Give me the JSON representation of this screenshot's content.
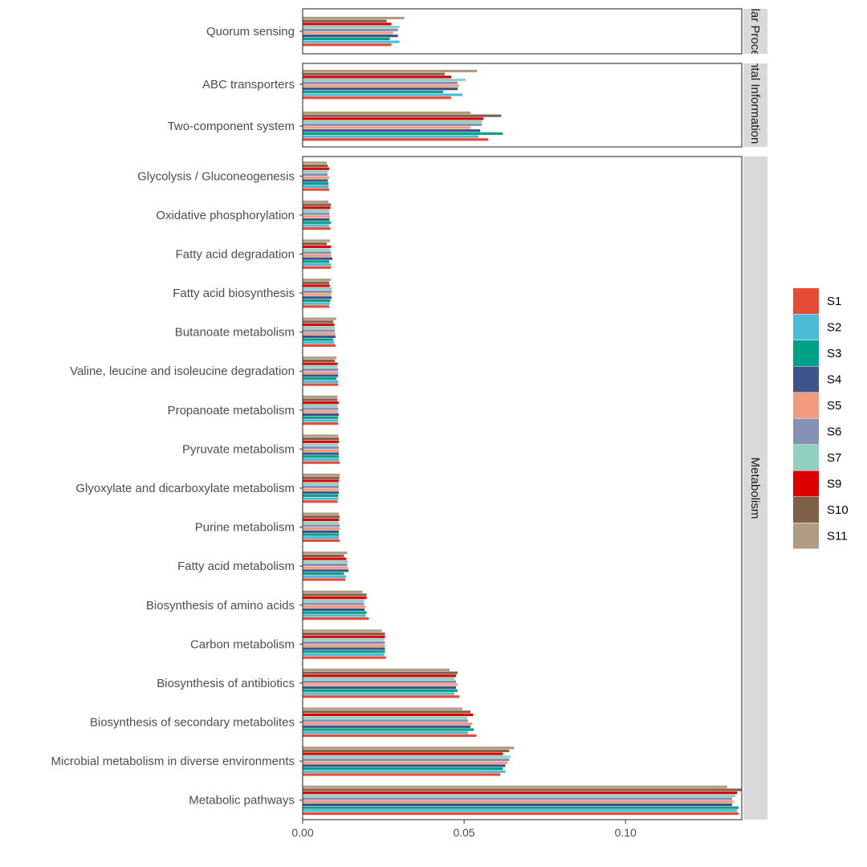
{
  "chart_data": {
    "type": "bar",
    "orientation": "horizontal",
    "xlim": [
      0,
      0.136
    ],
    "x_ticks": [
      0.0,
      0.05,
      0.1
    ],
    "x_tick_labels": [
      "0.00",
      "0.05",
      "0.10"
    ],
    "series": [
      {
        "name": "S1",
        "color": "#E64B35"
      },
      {
        "name": "S2",
        "color": "#4DBBD5"
      },
      {
        "name": "S3",
        "color": "#00A087"
      },
      {
        "name": "S4",
        "color": "#3C5488"
      },
      {
        "name": "S5",
        "color": "#F39B7F"
      },
      {
        "name": "S6",
        "color": "#8491B4"
      },
      {
        "name": "S7",
        "color": "#91D1C2"
      },
      {
        "name": "S9",
        "color": "#DC0000"
      },
      {
        "name": "S10",
        "color": "#7E6148"
      },
      {
        "name": "S11",
        "color": "#B09C85"
      }
    ],
    "facets": [
      {
        "strip_label": "Cellular Processes",
        "categories": [
          {
            "name": "Quorum sensing",
            "values": [
              0.0275,
              0.03,
              0.027,
              0.0295,
              0.028,
              0.0295,
              0.03,
              0.0275,
              0.026,
              0.0315
            ]
          }
        ]
      },
      {
        "strip_label": "Environmental Information Processing",
        "categories": [
          {
            "name": "ABC transporters",
            "values": [
              0.046,
              0.0495,
              0.0435,
              0.048,
              0.0485,
              0.048,
              0.0505,
              0.046,
              0.044,
              0.054
            ]
          },
          {
            "name": "Two-component system",
            "values": [
              0.0575,
              0.0545,
              0.062,
              0.055,
              0.052,
              0.0555,
              0.0555,
              0.056,
              0.0615,
              0.052
            ]
          }
        ]
      },
      {
        "strip_label": "Metabolism",
        "categories": [
          {
            "name": "Glycolysis / Gluconeogenesis",
            "values": [
              0.0082,
              0.008,
              0.008,
              0.0078,
              0.0082,
              0.0077,
              0.0077,
              0.0082,
              0.0078,
              0.0075
            ]
          },
          {
            "name": "Oxidative phosphorylation",
            "values": [
              0.0086,
              0.0082,
              0.0088,
              0.0083,
              0.0085,
              0.0083,
              0.0082,
              0.0086,
              0.0088,
              0.008
            ]
          },
          {
            "name": "Fatty acid degradation",
            "values": [
              0.0088,
              0.0087,
              0.0082,
              0.0092,
              0.0088,
              0.0088,
              0.0086,
              0.0088,
              0.0075,
              0.0085
            ]
          },
          {
            "name": "Fatty acid biosynthesis",
            "values": [
              0.0082,
              0.0084,
              0.0086,
              0.009,
              0.0088,
              0.009,
              0.0091,
              0.0084,
              0.0082,
              0.0088
            ]
          },
          {
            "name": "Butanoate metabolism",
            "values": [
              0.0102,
              0.0098,
              0.0095,
              0.0102,
              0.01,
              0.01,
              0.01,
              0.0098,
              0.0095,
              0.0104
            ]
          },
          {
            "name": "Valine, leucine and isoleucine degradation",
            "values": [
              0.011,
              0.011,
              0.0105,
              0.011,
              0.011,
              0.011,
              0.0108,
              0.0108,
              0.01,
              0.0105
            ]
          },
          {
            "name": "Propanoate metabolism",
            "values": [
              0.011,
              0.011,
              0.011,
              0.0112,
              0.011,
              0.011,
              0.0108,
              0.0112,
              0.0108,
              0.0108
            ]
          },
          {
            "name": "Pyruvate metabolism",
            "values": [
              0.0115,
              0.0112,
              0.0112,
              0.0112,
              0.0112,
              0.0112,
              0.011,
              0.0112,
              0.0112,
              0.011
            ]
          },
          {
            "name": "Glyoxylate and dicarboxylate metabolism",
            "values": [
              0.0108,
              0.011,
              0.011,
              0.0112,
              0.0112,
              0.0112,
              0.0112,
              0.0112,
              0.0114,
              0.0115
            ]
          },
          {
            "name": "Purine metabolism",
            "values": [
              0.0115,
              0.0112,
              0.0112,
              0.0112,
              0.0115,
              0.0115,
              0.0112,
              0.0112,
              0.0115,
              0.0112
            ]
          },
          {
            "name": "Fatty acid metabolism",
            "values": [
              0.0132,
              0.0135,
              0.0128,
              0.0142,
              0.014,
              0.0138,
              0.014,
              0.0135,
              0.0128,
              0.0138
            ]
          },
          {
            "name": "Biosynthesis of amino acids",
            "values": [
              0.0205,
              0.0195,
              0.0198,
              0.0192,
              0.0195,
              0.019,
              0.019,
              0.0198,
              0.0198,
              0.0185
            ]
          },
          {
            "name": "Carbon metabolism",
            "values": [
              0.0258,
              0.0252,
              0.0255,
              0.0255,
              0.0255,
              0.0255,
              0.0252,
              0.0255,
              0.0255,
              0.0245
            ]
          },
          {
            "name": "Biosynthesis of antibiotics",
            "values": [
              0.0485,
              0.047,
              0.048,
              0.0475,
              0.048,
              0.0475,
              0.047,
              0.0475,
              0.048,
              0.0455
            ]
          },
          {
            "name": "Biosynthesis of secondary metabolites",
            "values": [
              0.0538,
              0.0512,
              0.053,
              0.052,
              0.0525,
              0.0512,
              0.051,
              0.0528,
              0.052,
              0.0495
            ]
          },
          {
            "name": "Microbial metabolism in diverse environments",
            "values": [
              0.0612,
              0.0628,
              0.062,
              0.0628,
              0.0635,
              0.064,
              0.0645,
              0.062,
              0.064,
              0.0655
            ]
          },
          {
            "name": "Metabolic pathways",
            "values": [
              0.135,
              0.1345,
              0.135,
              0.133,
              0.1335,
              0.133,
              0.134,
              0.1345,
              0.136,
              0.1315
            ]
          }
        ]
      }
    ],
    "legend": {
      "position": "right",
      "labels": [
        "S1",
        "S2",
        "S3",
        "S4",
        "S5",
        "S6",
        "S7",
        "S9",
        "S10",
        "S11"
      ]
    },
    "xlabel": "",
    "ylabel": "",
    "grid": false
  }
}
